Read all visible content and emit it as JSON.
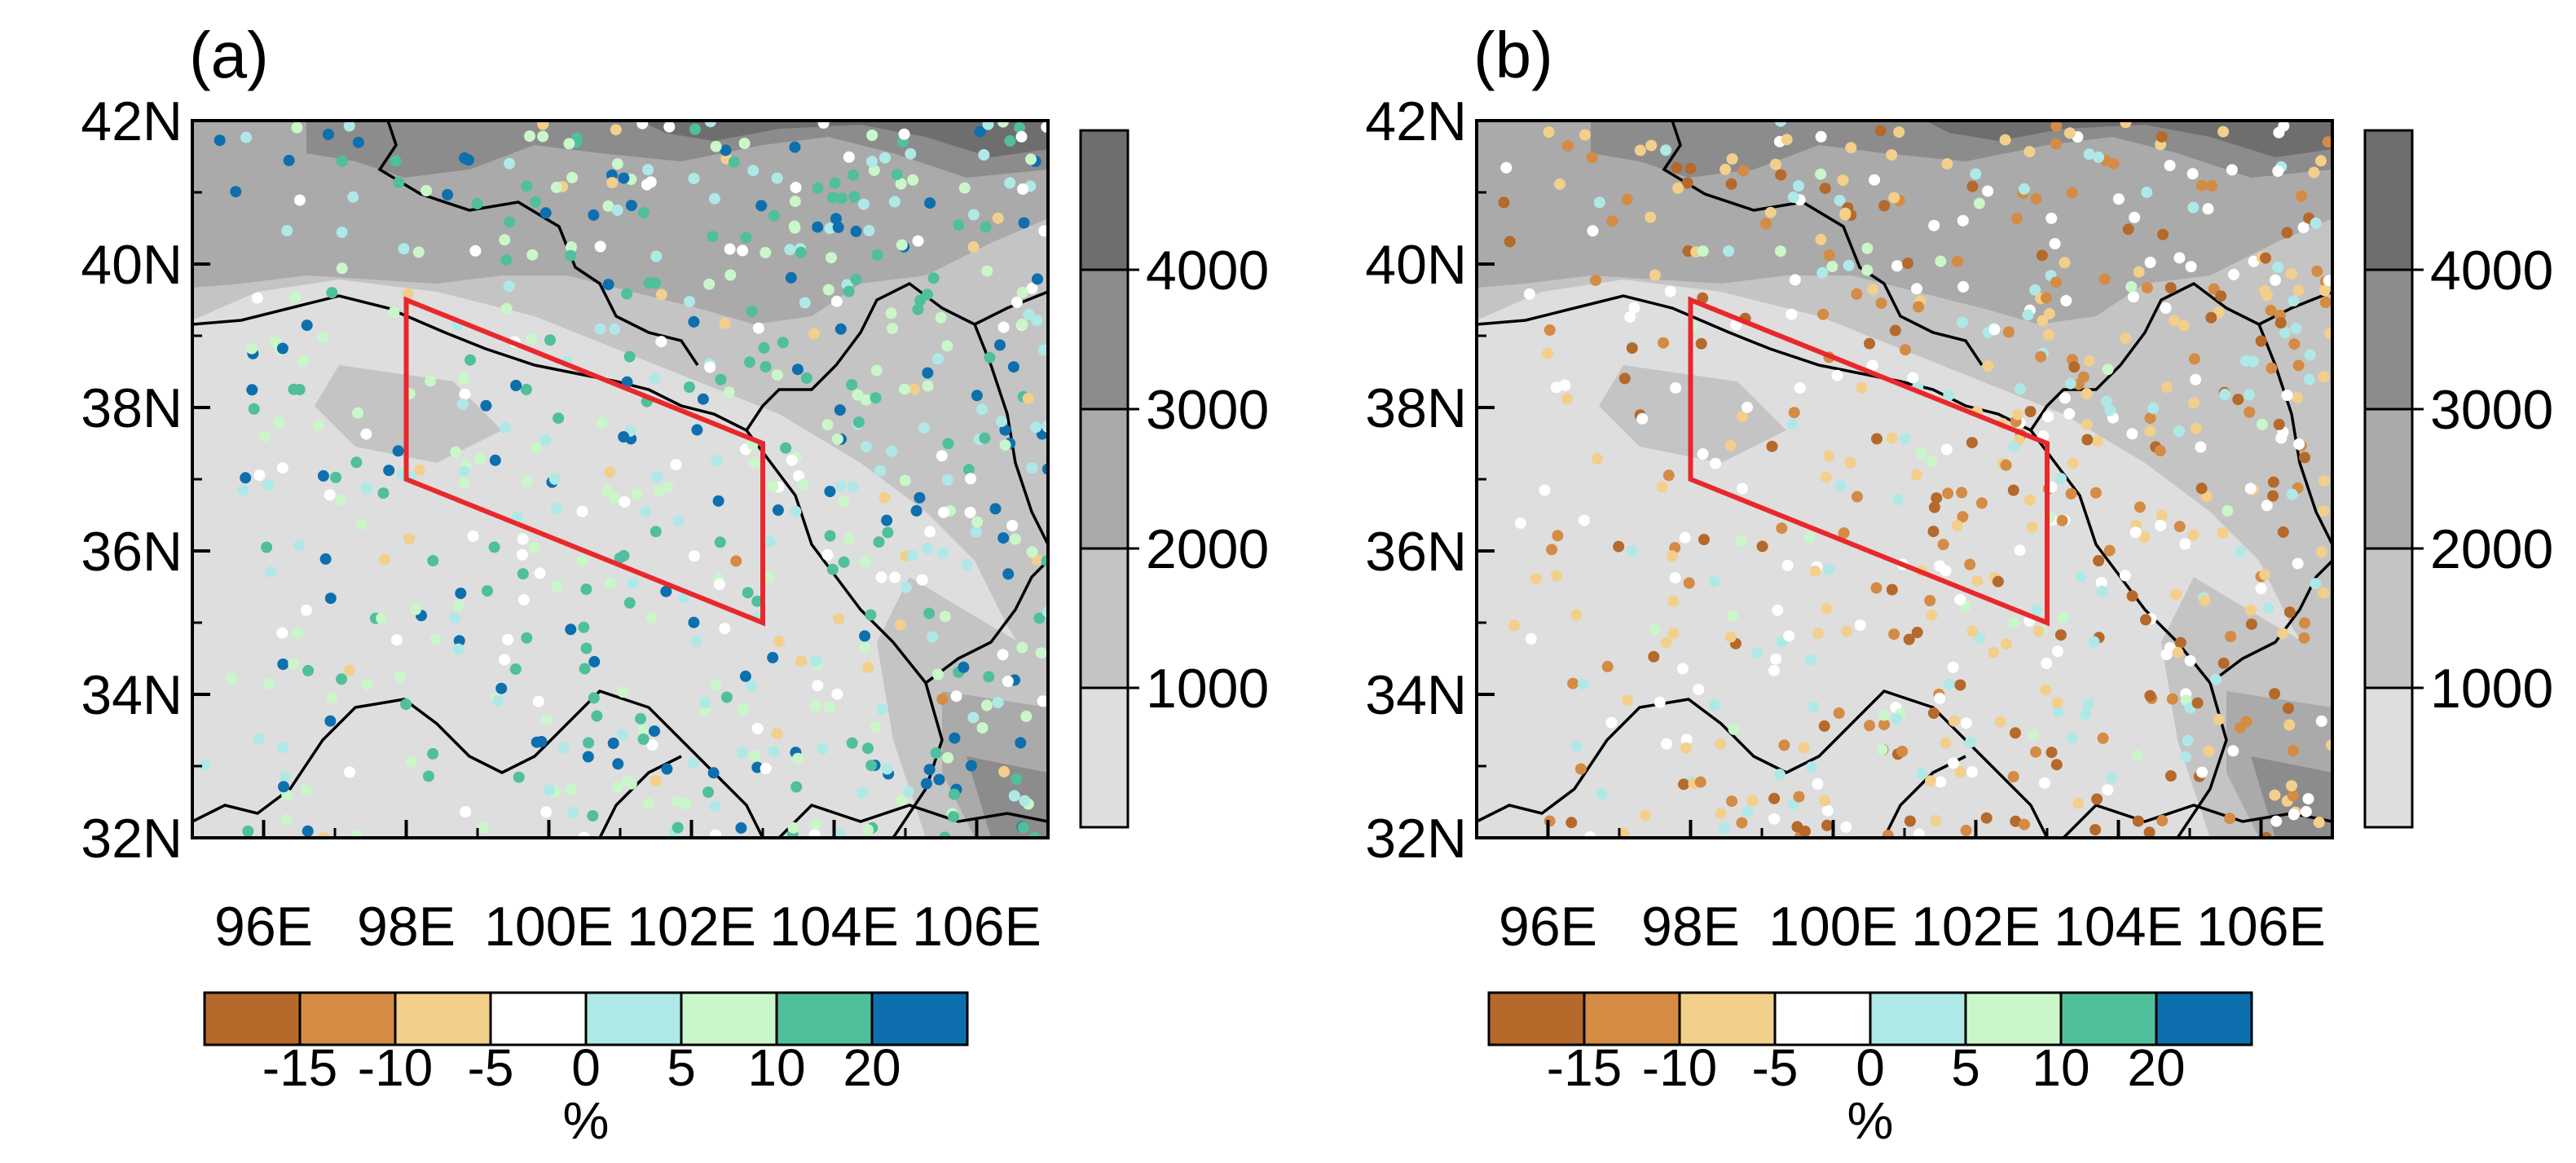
{
  "panels": [
    {
      "label": "(a)",
      "dot_seed": 11,
      "dot_bias": 0.35
    },
    {
      "label": "(b)",
      "dot_seed": 29,
      "dot_bias": -0.35
    }
  ],
  "map": {
    "lon_range": [
      95,
      107
    ],
    "lat_range": [
      32,
      42
    ],
    "lat_ticks": [
      "42N",
      "40N",
      "38N",
      "36N",
      "34N",
      "32N"
    ],
    "lat_values": [
      42,
      40,
      38,
      36,
      34,
      32
    ],
    "lon_ticks": [
      "96E",
      "98E",
      "100E",
      "102E",
      "104E",
      "106E"
    ],
    "lon_values": [
      96,
      98,
      100,
      102,
      104,
      106
    ],
    "region_box_lonlat": [
      [
        98,
        39.5
      ],
      [
        103,
        37.5
      ],
      [
        103,
        35.0
      ],
      [
        98,
        37.0
      ]
    ],
    "box_color": "#e8282b",
    "border_color": "#000000"
  },
  "elevation_colorbar": {
    "labels": [
      "4000",
      "3000",
      "2000",
      "1000"
    ],
    "colors": [
      "#6e6e6e",
      "#8c8c8c",
      "#aaaaaa",
      "#c4c4c4",
      "#dedede"
    ],
    "unit": ""
  },
  "percent_colorbar": {
    "labels": [
      "-15",
      "-10",
      "-5",
      "0",
      "5",
      "10",
      "20"
    ],
    "colors": [
      "#b5692a",
      "#d48b44",
      "#f3cf8c",
      "#ffffff",
      "#aee9e7",
      "#c9f7c9",
      "#4fbf9c",
      "#0d6fae"
    ],
    "unit": "%"
  }
}
